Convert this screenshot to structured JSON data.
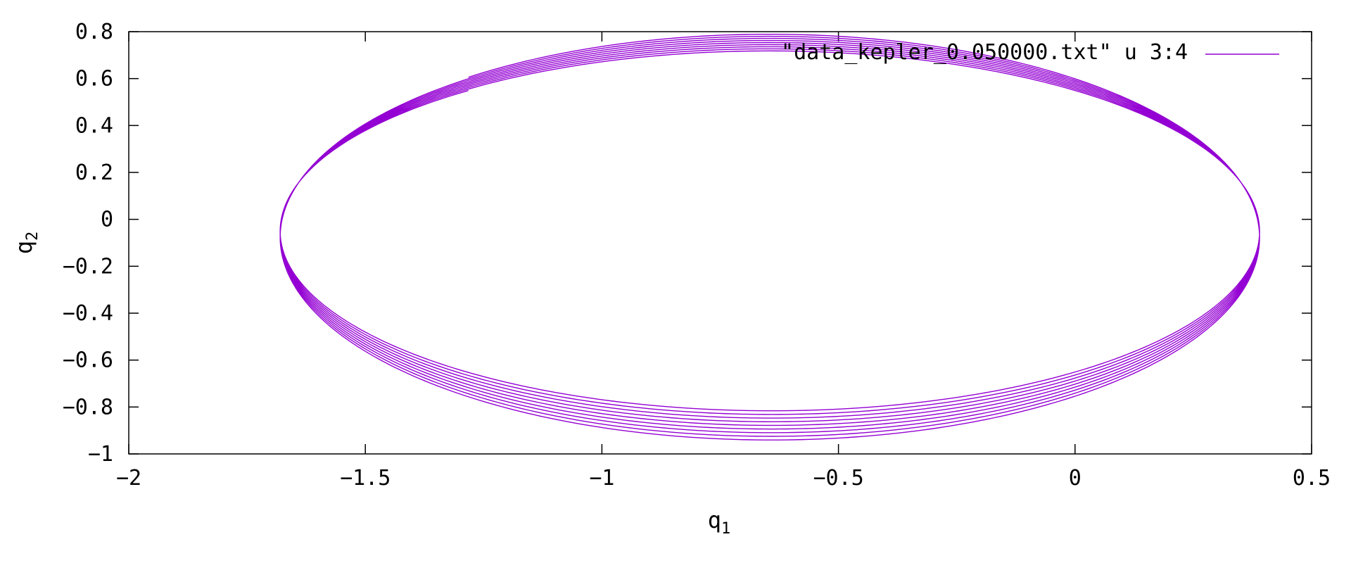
{
  "chart_data": {
    "type": "line",
    "xlabel": "q1",
    "ylabel": "q2",
    "xlim": [
      -2,
      0.5
    ],
    "ylim": [
      -1,
      0.8
    ],
    "x_ticks": [
      "-2",
      "-1.5",
      "-1",
      "-0.5",
      "0",
      "0.5"
    ],
    "y_ticks": [
      "-1",
      "-0.8",
      "-0.6",
      "-0.4",
      "-0.2",
      "0",
      "0.2",
      "0.4",
      "0.6",
      "0.8"
    ],
    "grid": false,
    "legend_position": "top-right",
    "series": [
      {
        "name": "\"data_kepler_0.050000.txt\" u 3:4",
        "color": "#9400d3",
        "orbit_params": {
          "periapsis_q1": 0.39,
          "apoapsis_q1": -1.68,
          "semi_minor_start": 0.76,
          "semi_minor_end": 0.87,
          "center_q2_start": -0.05,
          "center_q2_end": -0.08,
          "turns": 9,
          "start_angle_deg": 128
        }
      }
    ]
  }
}
